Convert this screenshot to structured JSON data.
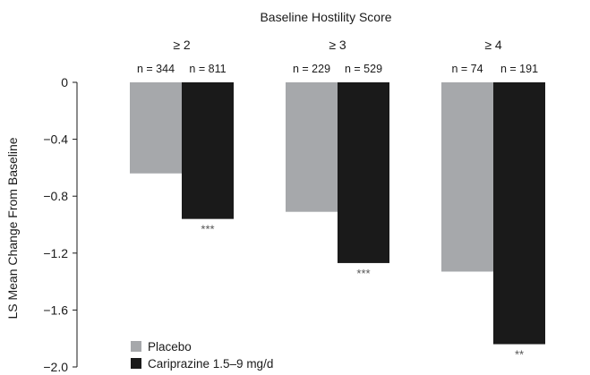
{
  "chart_data": {
    "type": "bar",
    "title": "Baseline Hostility Score",
    "ylabel": "LS Mean Change From Baseline",
    "xlabel": "",
    "ylim": [
      -2.0,
      0
    ],
    "yticks": [
      0,
      -0.4,
      -0.8,
      -1.2,
      -1.6,
      -2.0
    ],
    "ytick_labels": [
      "0",
      "−0.4",
      "−0.8",
      "−1.2",
      "−1.6",
      "−2.0"
    ],
    "categories": [
      "≥ 2",
      "≥ 3",
      "≥ 4"
    ],
    "sample_sizes": [
      {
        "placebo": "n = 344",
        "cariprazine": "n = 811"
      },
      {
        "placebo": "n = 229",
        "cariprazine": "n = 529"
      },
      {
        "placebo": "n = 74",
        "cariprazine": "n = 191"
      }
    ],
    "series": [
      {
        "name": "Placebo",
        "color": "#a6a8ab",
        "values": [
          -0.64,
          -0.91,
          -1.33
        ]
      },
      {
        "name": "Cariprazine 1.5–9 mg/d",
        "color": "#1a1a1a",
        "values": [
          -0.96,
          -1.27,
          -1.84
        ]
      }
    ],
    "significance": [
      "***",
      "***",
      "**"
    ],
    "legend_position": "bottom-left",
    "grid": false
  }
}
